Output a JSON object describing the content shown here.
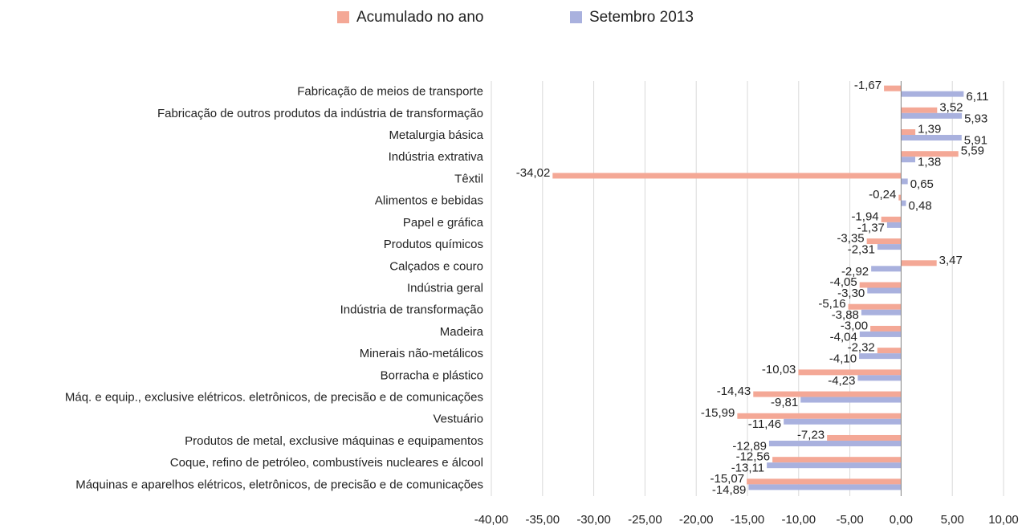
{
  "chart_data": {
    "type": "barh",
    "categories": [
      "Fabricação de meios de transporte",
      "Fabricação de outros produtos da indústria de transformação",
      "Metalurgia básica",
      "Indústria extrativa",
      "Têxtil",
      "Alimentos e bebidas",
      "Papel e gráfica",
      "Produtos químicos",
      "Calçados e couro",
      "Indústria geral",
      "Indústria de transformação",
      "Madeira",
      "Minerais não-metálicos",
      "Borracha e plástico",
      "Máq. e equip., exclusive elétricos. eletrônicos, de precisão e de comunicações",
      "Vestuário",
      "Produtos de metal, exclusive máquinas e equipamentos",
      "Coque, refino de petróleo, combustíveis nucleares e álcool",
      "Máquinas e aparelhos elétricos, eletrônicos, de precisão e de comunicações"
    ],
    "series": [
      {
        "name": "Acumulado no ano",
        "color": "#f4a896",
        "values": [
          -1.67,
          3.52,
          1.39,
          5.59,
          -34.02,
          -0.24,
          -1.94,
          -3.35,
          3.47,
          -4.05,
          -5.16,
          -3.0,
          -2.32,
          -10.03,
          -14.43,
          -15.99,
          -7.23,
          -12.56,
          -15.07
        ],
        "value_labels": [
          "-1,67",
          "3,52",
          "1,39",
          "5,59",
          "-34,02",
          "-0,24",
          "-1,94",
          "-3,35",
          "3,47",
          "-4,05",
          "-5,16",
          "-3,00",
          "-2,32",
          "-10,03",
          "-14,43",
          "-15,99",
          "-7,23",
          "-12,56",
          "-15,07"
        ]
      },
      {
        "name": "Setembro 2013",
        "color": "#a9b1de",
        "values": [
          6.11,
          5.93,
          5.91,
          1.38,
          0.65,
          0.48,
          -1.37,
          -2.31,
          -2.92,
          -3.3,
          -3.88,
          -4.04,
          -4.1,
          -4.23,
          -9.81,
          -11.46,
          -12.89,
          -13.11,
          -14.89
        ],
        "value_labels": [
          "6,11",
          "5,93",
          "5,91",
          "1,38",
          "0,65",
          "0,48",
          "-1,37",
          "-2,31",
          "-2,92",
          "-3,30",
          "-3,88",
          "-4,04",
          "-4,10",
          "-4,23",
          "-9,81",
          "-11,46",
          "-12,89",
          "-13,11",
          "-14,89"
        ]
      }
    ],
    "xlim": [
      -40,
      10
    ],
    "xticks": [
      {
        "value": -40,
        "label": "-40,00"
      },
      {
        "value": -35,
        "label": "-35,00"
      },
      {
        "value": -30,
        "label": "-30,00"
      },
      {
        "value": -25,
        "label": "-25,00"
      },
      {
        "value": -20,
        "label": "-20,00"
      },
      {
        "value": -15,
        "label": "-15,00"
      },
      {
        "value": -10,
        "label": "-10,00"
      },
      {
        "value": -5,
        "label": "-5,00"
      },
      {
        "value": 0,
        "label": "0,00"
      },
      {
        "value": 5,
        "label": "5,00"
      },
      {
        "value": 10,
        "label": "10,00"
      }
    ],
    "grid": true,
    "legend": "top"
  }
}
